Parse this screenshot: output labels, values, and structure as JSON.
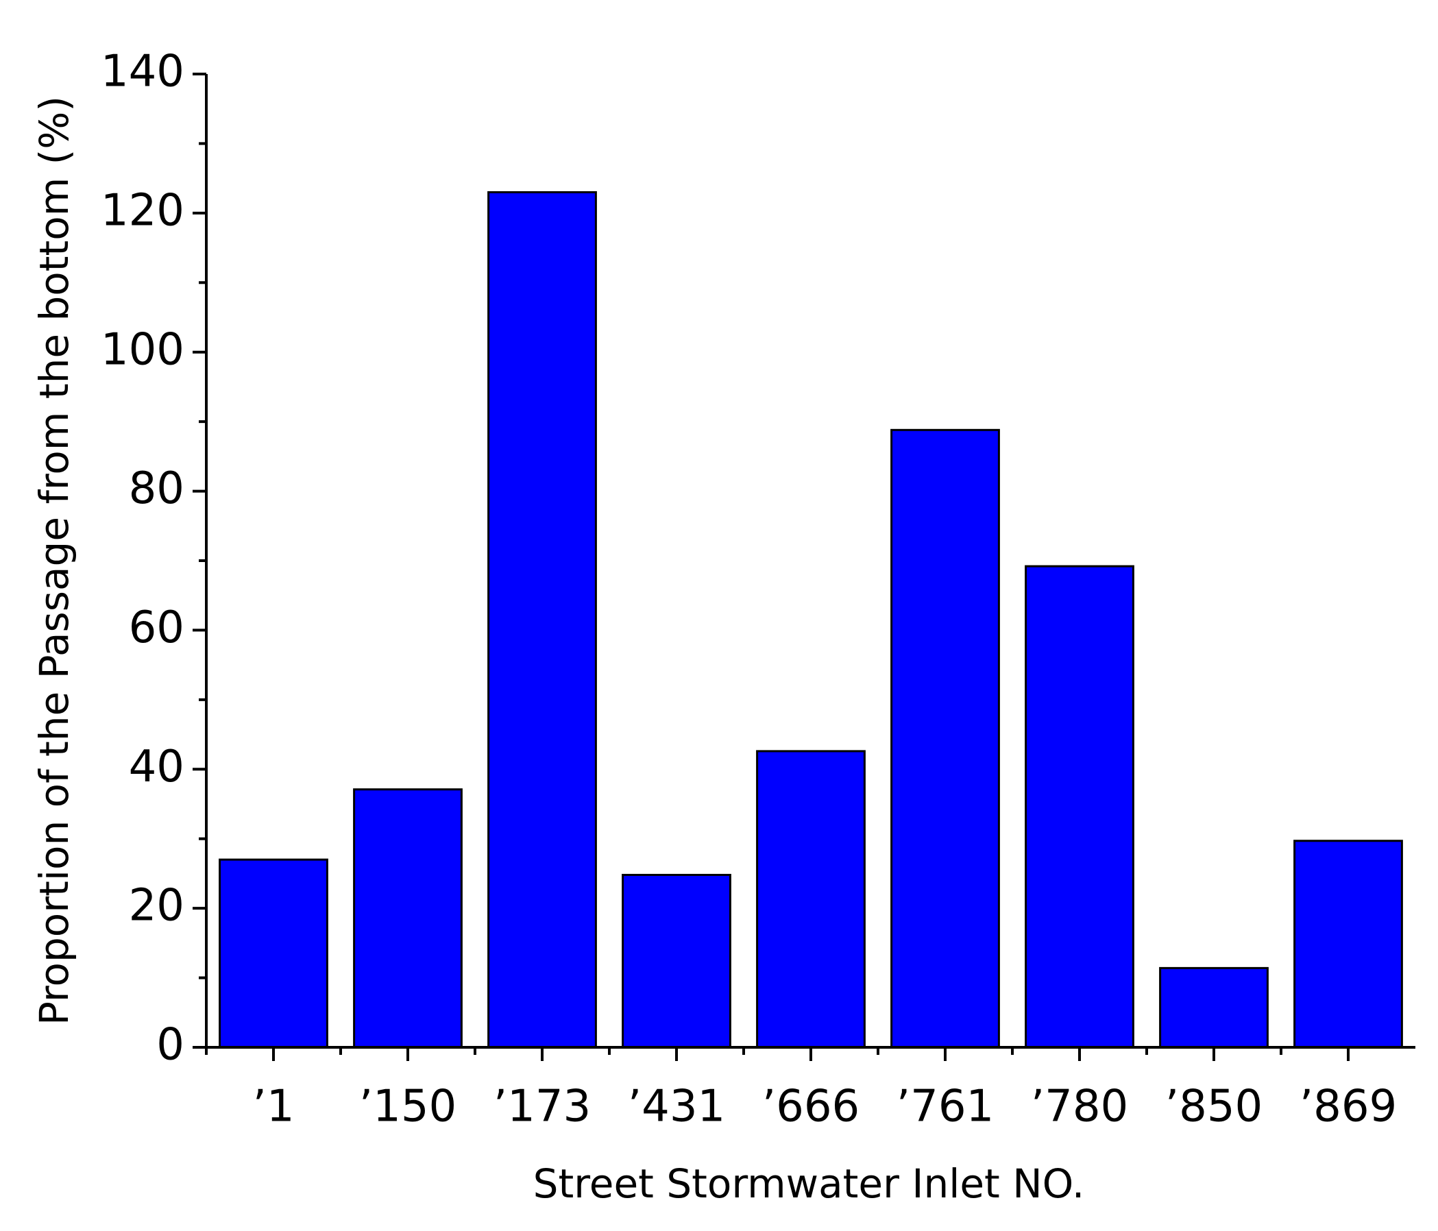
{
  "chart_data": {
    "type": "bar",
    "x_label": "Street Stormwater Inlet NO.",
    "y_label": "Proportion of the Passage from the bottom (%)",
    "categories": [
      "’1",
      "’150",
      "’173",
      "’431",
      "’666",
      "’761",
      "’780",
      "’850",
      "’869"
    ],
    "values": [
      27,
      37.1,
      123,
      24.8,
      42.6,
      88.8,
      69.2,
      11.4,
      29.7
    ],
    "color": "#0000ff",
    "ylim": [
      0,
      140
    ],
    "yticks": [
      0,
      20,
      40,
      60,
      80,
      100,
      120,
      140
    ],
    "grid": false
  }
}
